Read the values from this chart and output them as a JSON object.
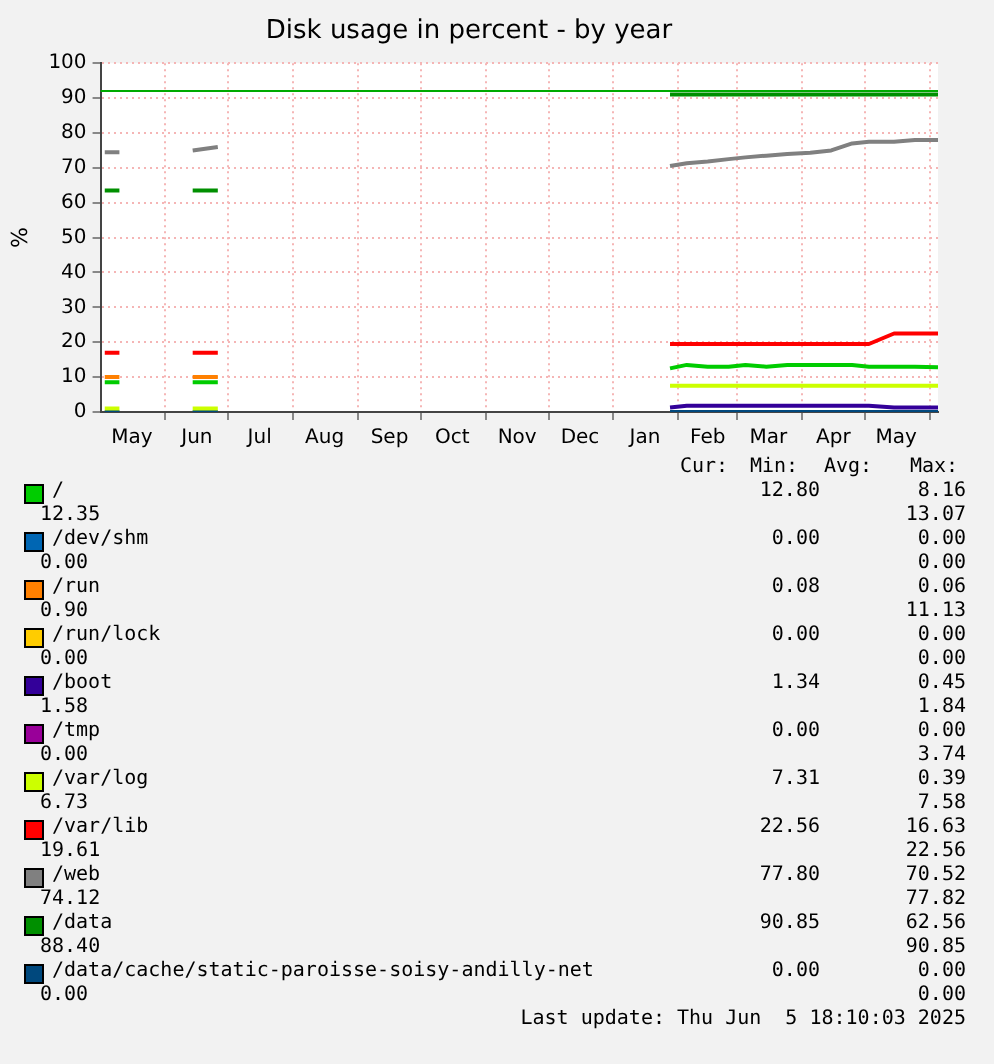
{
  "chart_data": {
    "type": "line",
    "title": "Disk usage in percent - by year",
    "ylabel": "%",
    "x": [
      "2024-05-03",
      "2024-05-10",
      "2024-05-20",
      "2024-06-14",
      "2024-06-26",
      "2024-07-15",
      "2025-01-28",
      "2025-02-05",
      "2025-02-15",
      "2025-02-25",
      "2025-03-05",
      "2025-03-15",
      "2025-03-25",
      "2025-04-05",
      "2025-04-15",
      "2025-04-25",
      "2025-05-03",
      "2025-05-15",
      "2025-05-25",
      "2025-06-05"
    ],
    "xlim": [
      "2024-05-01",
      "2025-06-05"
    ],
    "xticks": [
      {
        "value": "2024-05-16",
        "label": "May"
      },
      {
        "value": "2024-06-01",
        "label": null
      },
      {
        "value": "2024-06-16",
        "label": "Jun"
      },
      {
        "value": "2024-07-01",
        "label": null
      },
      {
        "value": "2024-07-16",
        "label": "Jul"
      },
      {
        "value": "2024-08-01",
        "label": null
      },
      {
        "value": "2024-08-16",
        "label": "Aug"
      },
      {
        "value": "2024-09-01",
        "label": null
      },
      {
        "value": "2024-09-16",
        "label": "Sep"
      },
      {
        "value": "2024-10-01",
        "label": null
      },
      {
        "value": "2024-10-16",
        "label": "Oct"
      },
      {
        "value": "2024-11-01",
        "label": null
      },
      {
        "value": "2024-11-16",
        "label": "Nov"
      },
      {
        "value": "2024-12-01",
        "label": null
      },
      {
        "value": "2024-12-16",
        "label": "Dec"
      },
      {
        "value": "2025-01-01",
        "label": null
      },
      {
        "value": "2025-01-16",
        "label": "Jan"
      },
      {
        "value": "2025-02-01",
        "label": null
      },
      {
        "value": "2025-02-15",
        "label": "Feb"
      },
      {
        "value": "2025-03-01",
        "label": null
      },
      {
        "value": "2025-03-16",
        "label": "Mar"
      },
      {
        "value": "2025-04-01",
        "label": null
      },
      {
        "value": "2025-04-16",
        "label": "Apr"
      },
      {
        "value": "2025-05-01",
        "label": null
      },
      {
        "value": "2025-05-16",
        "label": "May"
      },
      {
        "value": "2025-06-01",
        "label": null
      }
    ],
    "ylim": [
      0,
      100
    ],
    "yticks": [
      0,
      10,
      20,
      30,
      40,
      50,
      60,
      70,
      80,
      90,
      100
    ],
    "grid": true,
    "legend": "bottom",
    "marker": "none",
    "line_style": "solid",
    "ref_lines": [
      {
        "axis": "y",
        "value": 92,
        "color": "#00aa00"
      }
    ],
    "series": [
      {
        "name": "/",
        "color": "#00cc00",
        "values": [
          8.5,
          8.5,
          null,
          8.5,
          8.5,
          null,
          12.5,
          13.5,
          13,
          13,
          13.5,
          13,
          13.5,
          13.5,
          13.5,
          13.5,
          13,
          13,
          13,
          12.8
        ]
      },
      {
        "name": "/dev/shm",
        "color": "#0066b3",
        "values": [
          null,
          null,
          null,
          null,
          null,
          null,
          null,
          null,
          null,
          null,
          null,
          null,
          null,
          null,
          null,
          null,
          null,
          null,
          null,
          null
        ]
      },
      {
        "name": "/run",
        "color": "#ff8000",
        "values": [
          10,
          10,
          null,
          10,
          10,
          null,
          null,
          null,
          null,
          null,
          null,
          null,
          null,
          null,
          null,
          null,
          null,
          null,
          null,
          null
        ]
      },
      {
        "name": "/run/lock",
        "color": "#ffcc00",
        "values": [
          null,
          null,
          null,
          null,
          null,
          null,
          null,
          null,
          null,
          null,
          null,
          null,
          null,
          null,
          null,
          null,
          null,
          null,
          null,
          null
        ]
      },
      {
        "name": "/boot",
        "color": "#330099",
        "values": [
          null,
          null,
          null,
          null,
          null,
          null,
          1.3,
          1.8,
          1.8,
          1.8,
          1.8,
          1.8,
          1.8,
          1.8,
          1.8,
          1.8,
          1.8,
          1.3,
          1.3,
          1.3
        ]
      },
      {
        "name": "/tmp",
        "color": "#990099",
        "values": [
          null,
          null,
          null,
          null,
          null,
          null,
          null,
          null,
          null,
          null,
          null,
          null,
          null,
          null,
          null,
          null,
          null,
          null,
          null,
          null
        ]
      },
      {
        "name": "/var/log",
        "color": "#ccff00",
        "values": [
          1,
          1,
          null,
          1,
          1,
          null,
          7.5,
          7.5,
          7.5,
          7.5,
          7.5,
          7.5,
          7.5,
          7.5,
          7.5,
          7.5,
          7.5,
          7.5,
          7.5,
          7.5
        ]
      },
      {
        "name": "/var/lib",
        "color": "#ff0000",
        "values": [
          17,
          17,
          null,
          17,
          17,
          null,
          19.5,
          19.5,
          19.5,
          19.5,
          19.5,
          19.5,
          19.5,
          19.5,
          19.5,
          19.5,
          19.5,
          22.5,
          22.5,
          22.5
        ]
      },
      {
        "name": "/web",
        "color": "#808080",
        "values": [
          74.5,
          74.5,
          null,
          75,
          76,
          null,
          70.5,
          71.3,
          71.8,
          72.5,
          73,
          73.5,
          74,
          74.3,
          75,
          77,
          77.5,
          77.5,
          78,
          78
        ]
      },
      {
        "name": "/data",
        "color": "#008f00",
        "values": [
          63.5,
          63.5,
          null,
          63.5,
          63.5,
          null,
          91,
          91,
          91,
          91,
          91,
          91,
          91,
          91,
          91,
          91,
          91,
          91,
          91,
          91
        ]
      },
      {
        "name": "/data/cache/static-paroisse-soisy-andilly-net",
        "color": "#00487d",
        "values": [
          0,
          0,
          null,
          0,
          0,
          null,
          0,
          0,
          0,
          0,
          0,
          0,
          0,
          0,
          0,
          0,
          0,
          0,
          0,
          0
        ]
      }
    ],
    "annotations": [
      "Cur:",
      "Min:",
      "Avg:",
      "Max:",
      "12.80",
      "8.16",
      "12.35",
      "13.07",
      "0.00",
      "0.00",
      "0.00",
      "0.00",
      "0.08",
      "0.06",
      "0.90",
      "11.13",
      "0.00",
      "0.00",
      "0.00",
      "0.00",
      "1.34",
      "0.45",
      "1.58",
      "1.84",
      "0.00",
      "0.00",
      "0.00",
      "3.74",
      "7.31",
      "0.39",
      "6.73",
      "7.58",
      "22.56",
      "16.63",
      "19.61",
      "22.56",
      "77.80",
      "70.52",
      "74.12",
      "77.82",
      "90.85",
      "62.56",
      "88.40",
      "90.85",
      "0.00",
      "0.00",
      "0.00",
      "0.00",
      "Last update: Thu Jun  5 18:10:03 2025"
    ]
  }
}
